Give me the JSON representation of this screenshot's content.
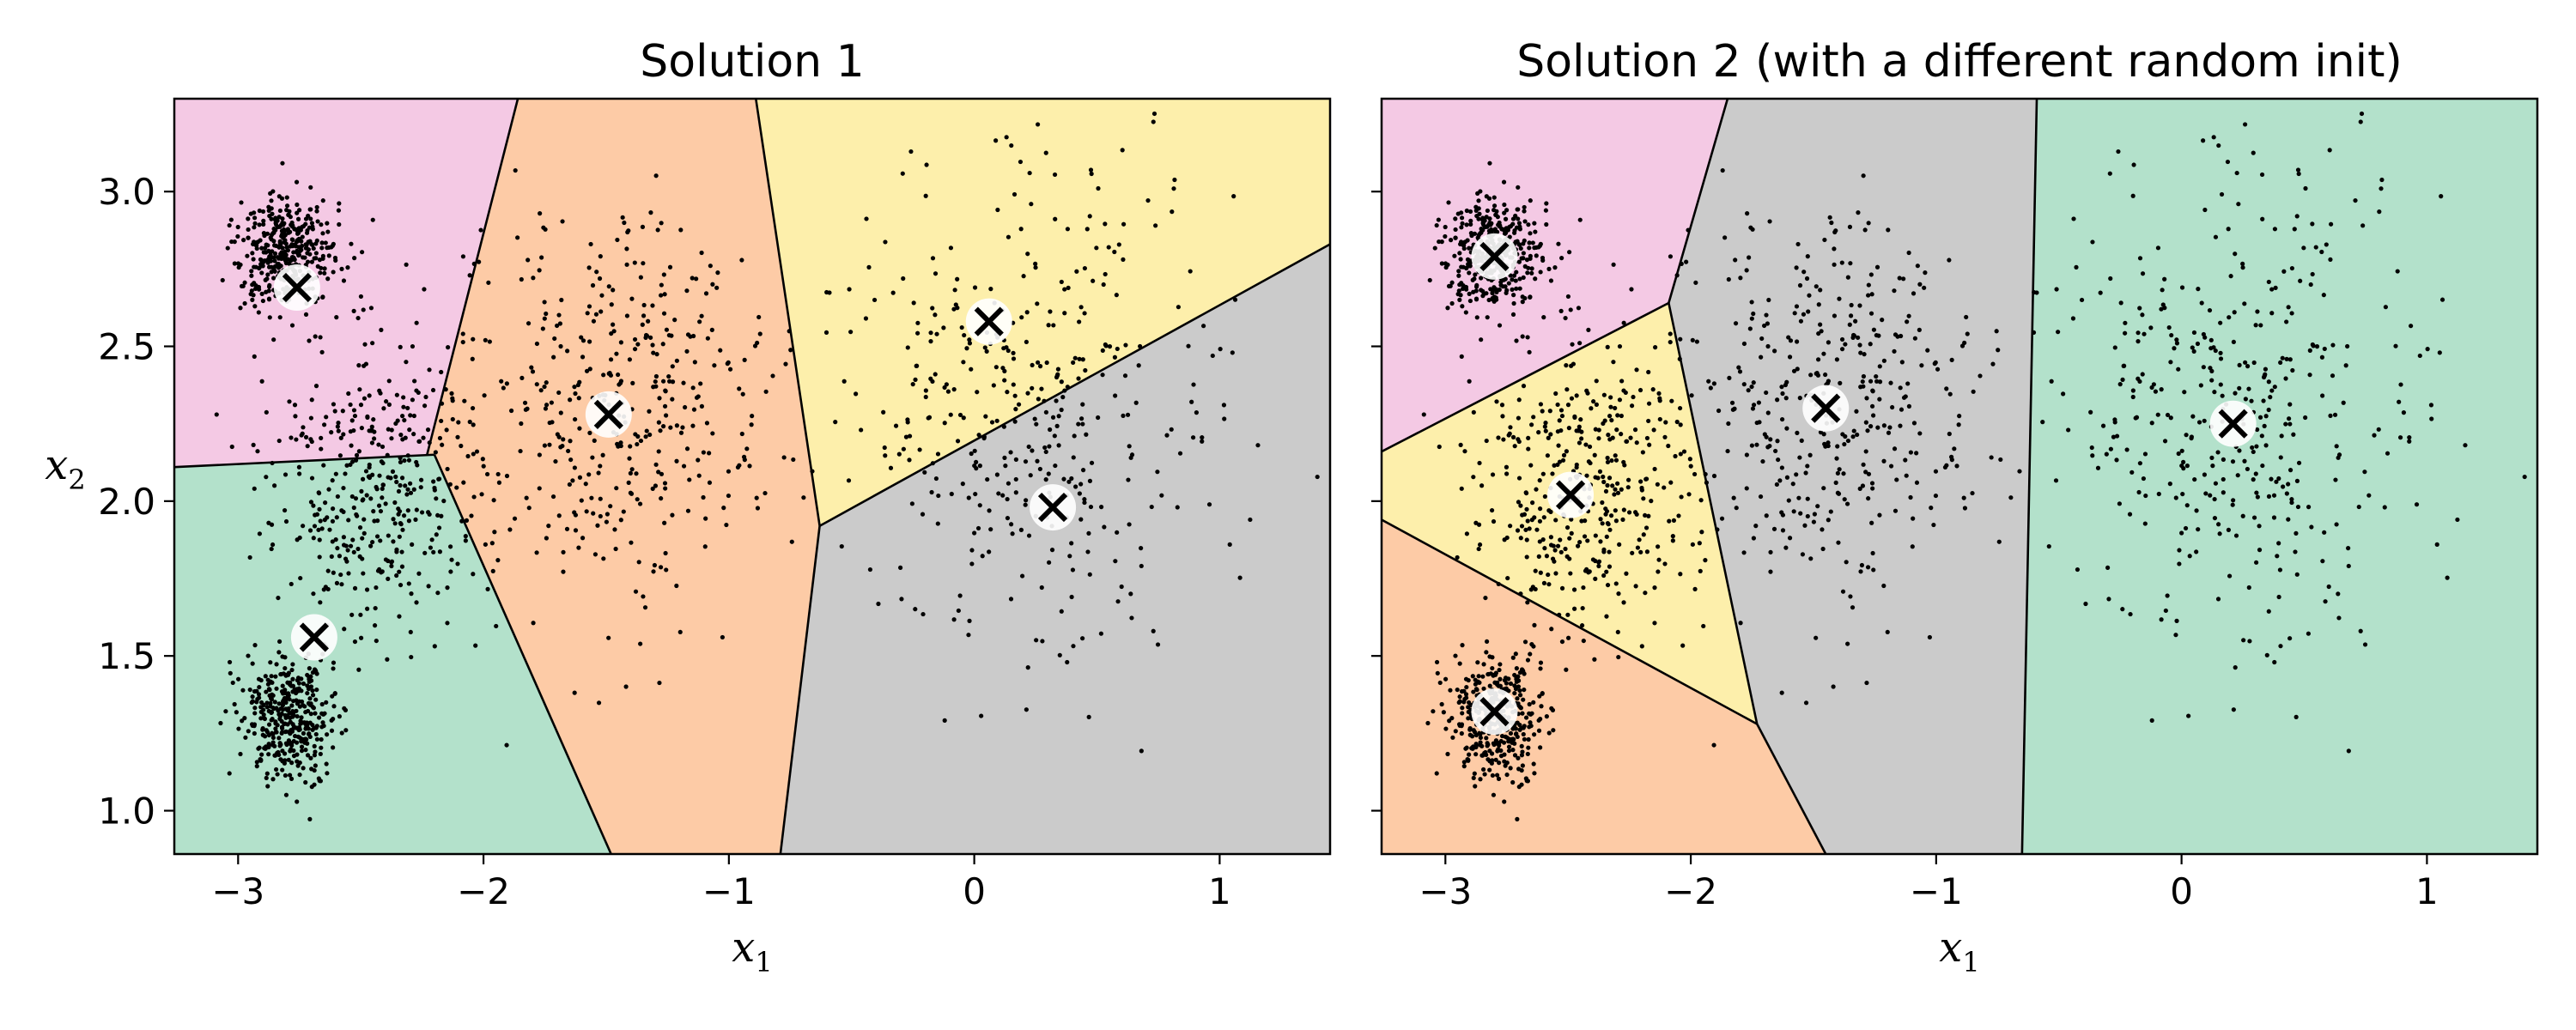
{
  "chart_data": [
    {
      "type": "scatter",
      "title": "Solution 1",
      "xlabel": "x1",
      "ylabel": "x2",
      "xlim": [
        -3.26,
        1.45
      ],
      "ylim": [
        0.86,
        3.3
      ],
      "xticks": [
        -3,
        -2,
        -1,
        0,
        1
      ],
      "yticks": [
        1.0,
        1.5,
        2.0,
        2.5,
        3.0
      ],
      "xtick_labels": [
        "−3",
        "−2",
        "−1",
        "0",
        "1"
      ],
      "ytick_labels": [
        "1.0",
        "1.5",
        "2.0",
        "2.5",
        "3.0"
      ],
      "centroids": [
        {
          "x": -2.76,
          "y": 2.69,
          "cluster": "pink"
        },
        {
          "x": -1.49,
          "y": 2.28,
          "cluster": "orange"
        },
        {
          "x": 0.06,
          "y": 2.58,
          "cluster": "yellow"
        },
        {
          "x": 0.32,
          "y": 1.98,
          "cluster": "gray"
        },
        {
          "x": -2.69,
          "y": 1.56,
          "cluster": "green"
        }
      ],
      "regions": [
        {
          "cluster": "pink",
          "color": "#f4c9e4",
          "polygon": [
            [
              -3.26,
              3.3
            ],
            [
              -1.86,
              3.3
            ],
            [
              -2.23,
              2.15
            ],
            [
              -3.26,
              2.11
            ]
          ]
        },
        {
          "cluster": "orange",
          "color": "#fdcba6",
          "polygon": [
            [
              -1.86,
              3.3
            ],
            [
              -0.89,
              3.3
            ],
            [
              -0.63,
              1.92
            ],
            [
              -0.79,
              0.86
            ],
            [
              -1.48,
              0.86
            ],
            [
              -2.2,
              2.15
            ],
            [
              -2.23,
              2.15
            ]
          ]
        },
        {
          "cluster": "yellow",
          "color": "#fdefab",
          "polygon": [
            [
              -0.89,
              3.3
            ],
            [
              1.45,
              3.3
            ],
            [
              1.45,
              2.83
            ],
            [
              -0.63,
              1.92
            ]
          ]
        },
        {
          "cluster": "gray",
          "color": "#cbcbcb",
          "polygon": [
            [
              -0.63,
              1.92
            ],
            [
              1.45,
              2.83
            ],
            [
              1.45,
              0.86
            ],
            [
              -0.79,
              0.86
            ]
          ]
        },
        {
          "cluster": "green",
          "color": "#b3e1cb",
          "polygon": [
            [
              -3.26,
              2.11
            ],
            [
              -2.23,
              2.15
            ],
            [
              -2.2,
              2.15
            ],
            [
              -1.48,
              0.86
            ],
            [
              -3.26,
              0.86
            ]
          ]
        }
      ],
      "boundaries": [
        [
          [
            -1.86,
            3.3
          ],
          [
            -2.23,
            2.15
          ]
        ],
        [
          [
            -3.26,
            2.11
          ],
          [
            -2.2,
            2.15
          ]
        ],
        [
          [
            -2.2,
            2.15
          ],
          [
            -1.48,
            0.86
          ]
        ],
        [
          [
            -0.89,
            3.3
          ],
          [
            -0.63,
            1.92
          ]
        ],
        [
          [
            -0.63,
            1.92
          ],
          [
            -0.79,
            0.86
          ]
        ],
        [
          [
            -0.63,
            1.92
          ],
          [
            1.45,
            2.83
          ]
        ]
      ]
    },
    {
      "type": "scatter",
      "title": "Solution 2 (with a different random init)",
      "xlabel": "x1",
      "ylabel": "",
      "xlim": [
        -3.26,
        1.45
      ],
      "ylim": [
        0.86,
        3.3
      ],
      "xticks": [
        -3,
        -2,
        -1,
        0,
        1
      ],
      "yticks": [
        1.0,
        1.5,
        2.0,
        2.5,
        3.0
      ],
      "xtick_labels": [
        "−3",
        "−2",
        "−1",
        "0",
        "1"
      ],
      "ytick_labels": [],
      "centroids": [
        {
          "x": -2.8,
          "y": 2.79,
          "cluster": "pink"
        },
        {
          "x": -2.49,
          "y": 2.02,
          "cluster": "yellow"
        },
        {
          "x": -2.8,
          "y": 1.32,
          "cluster": "orange"
        },
        {
          "x": -1.45,
          "y": 2.3,
          "cluster": "gray"
        },
        {
          "x": 0.21,
          "y": 2.25,
          "cluster": "green"
        }
      ],
      "regions": [
        {
          "cluster": "pink",
          "color": "#f4c9e4",
          "polygon": [
            [
              -3.26,
              3.3
            ],
            [
              -1.85,
              3.3
            ],
            [
              -2.09,
              2.64
            ],
            [
              -3.26,
              2.16
            ]
          ]
        },
        {
          "cluster": "yellow",
          "color": "#fdefab",
          "polygon": [
            [
              -3.26,
              2.16
            ],
            [
              -2.09,
              2.64
            ],
            [
              -1.73,
              1.28
            ],
            [
              -3.26,
              1.94
            ]
          ]
        },
        {
          "cluster": "orange",
          "color": "#fdcba6",
          "polygon": [
            [
              -3.26,
              1.94
            ],
            [
              -1.73,
              1.28
            ],
            [
              -1.45,
              0.86
            ],
            [
              -3.26,
              0.86
            ]
          ]
        },
        {
          "cluster": "gray",
          "color": "#cbcbcb",
          "polygon": [
            [
              -1.85,
              3.3
            ],
            [
              -0.59,
              3.3
            ],
            [
              -0.65,
              0.86
            ],
            [
              -1.45,
              0.86
            ],
            [
              -1.73,
              1.28
            ],
            [
              -2.09,
              2.64
            ]
          ]
        },
        {
          "cluster": "green",
          "color": "#b3e1cb",
          "polygon": [
            [
              -0.59,
              3.3
            ],
            [
              1.45,
              3.3
            ],
            [
              1.45,
              0.86
            ],
            [
              -0.65,
              0.86
            ]
          ]
        }
      ],
      "boundaries": [
        [
          [
            -1.85,
            3.3
          ],
          [
            -2.09,
            2.64
          ]
        ],
        [
          [
            -3.26,
            2.16
          ],
          [
            -2.09,
            2.64
          ]
        ],
        [
          [
            -2.09,
            2.64
          ],
          [
            -1.73,
            1.28
          ]
        ],
        [
          [
            -3.26,
            1.94
          ],
          [
            -1.73,
            1.28
          ]
        ],
        [
          [
            -1.73,
            1.28
          ],
          [
            -1.45,
            0.86
          ]
        ],
        [
          [
            -0.59,
            3.3
          ],
          [
            -0.65,
            0.86
          ]
        ]
      ]
    }
  ],
  "blobs": [
    {
      "cx": -2.8,
      "cy": 2.8,
      "sx": 0.1,
      "sy": 0.1,
      "n": 400
    },
    {
      "cx": -2.8,
      "cy": 1.3,
      "sx": 0.1,
      "sy": 0.1,
      "n": 400
    },
    {
      "cx": -2.45,
      "cy": 2.05,
      "sx": 0.22,
      "sy": 0.25,
      "n": 400
    },
    {
      "cx": -1.45,
      "cy": 2.3,
      "sx": 0.32,
      "sy": 0.32,
      "n": 400
    },
    {
      "cx": 0.2,
      "cy": 2.3,
      "sx": 0.38,
      "sy": 0.4,
      "n": 400
    }
  ]
}
